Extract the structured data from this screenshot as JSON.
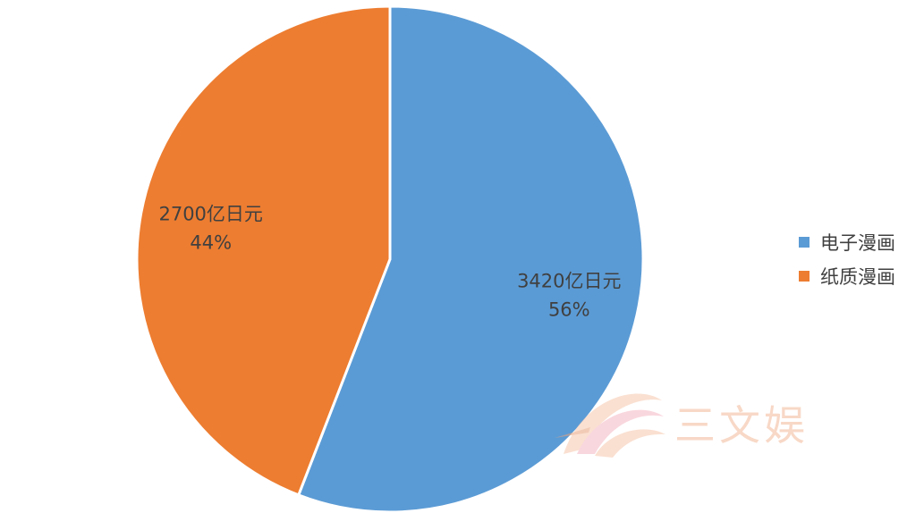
{
  "chart_data": {
    "type": "pie",
    "title": "",
    "start_angle_deg": 0,
    "direction": "clockwise",
    "slices": [
      {
        "name": "电子漫画",
        "value": 3420,
        "percent": 56,
        "label": "3420亿日元",
        "percent_label": "56%",
        "color": "#5b9bd5"
      },
      {
        "name": "纸质漫画",
        "value": 2700,
        "percent": 44,
        "label": "2700亿日元",
        "percent_label": "44%",
        "color": "#ed7d31"
      }
    ],
    "legend_position": "right"
  },
  "watermark": {
    "text": "三文娱"
  }
}
